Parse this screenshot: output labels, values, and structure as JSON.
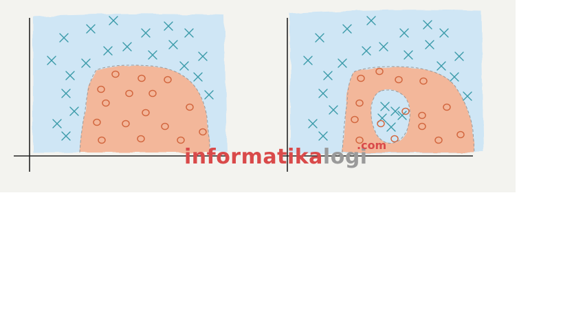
{
  "colors": {
    "background": "#f3f3ef",
    "class_x_region": "#cfe6f5",
    "class_o_region": "#f3b79a",
    "class_x_mark": "#3a9aa8",
    "class_o_mark": "#d2673f",
    "axis": "#222222"
  },
  "watermark": {
    "part1": "informatika",
    "part2": "logi",
    "suffix": ".com",
    "color_part1": "#d94a4a",
    "color_part2": "#9a9a9a"
  },
  "panels": [
    {
      "id": "left",
      "description_shape": "single orange blob region inside blue background"
    },
    {
      "id": "right",
      "description_shape": "orange ring region with blue hole containing crosses"
    }
  ]
}
